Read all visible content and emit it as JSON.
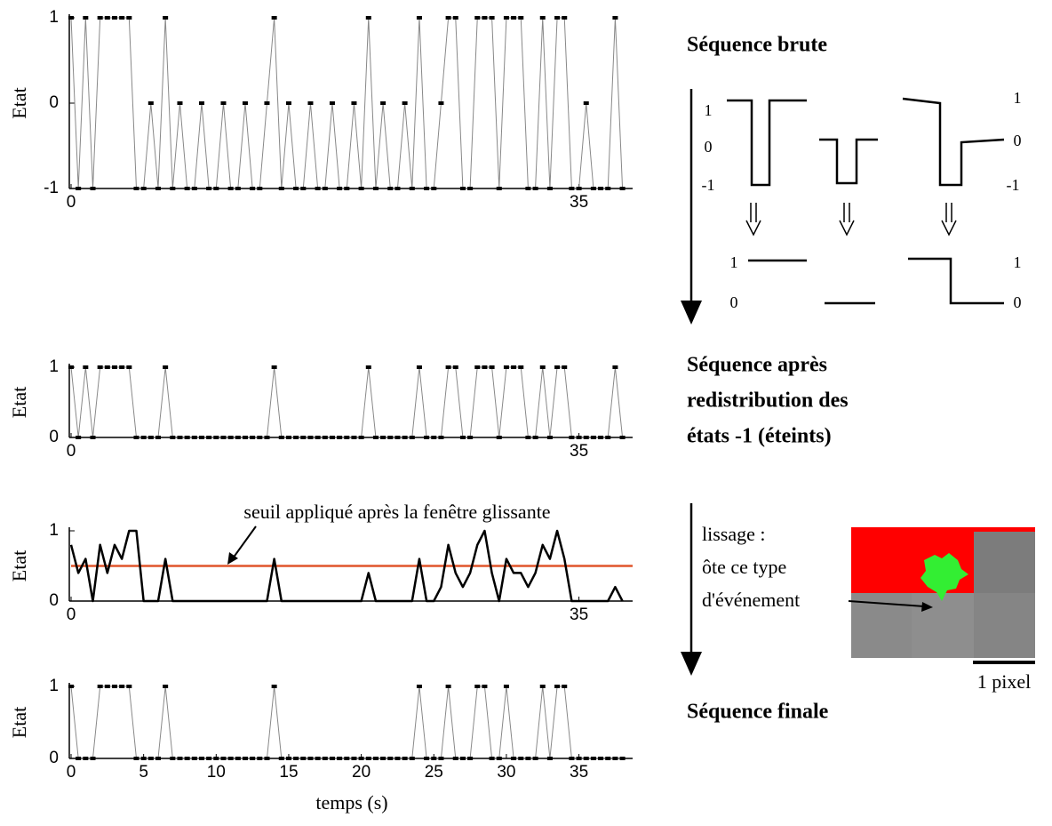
{
  "chart_data": [
    {
      "type": "line",
      "ylabel": "Etat",
      "color": "#888888",
      "markers": true,
      "marker_color": "#000000",
      "xlim": [
        0,
        38.7
      ],
      "xticks": [
        0,
        35
      ],
      "ylim": [
        -1,
        1
      ],
      "yticks": [
        -1,
        0,
        1
      ],
      "x": [
        0,
        0.5,
        1,
        1.5,
        2,
        2.5,
        3,
        3.5,
        4,
        4.5,
        5,
        5.5,
        6,
        6.5,
        7,
        7.5,
        8,
        8.5,
        9,
        9.5,
        10,
        10.5,
        11,
        11.5,
        12,
        12.5,
        13,
        13.5,
        14,
        14.5,
        15,
        15.5,
        16,
        16.5,
        17,
        17.5,
        18,
        18.5,
        19,
        19.5,
        20,
        20.5,
        21,
        21.5,
        22,
        22.5,
        23,
        23.5,
        24,
        24.5,
        25,
        25.5,
        26,
        26.5,
        27,
        27.5,
        28,
        28.5,
        29,
        29.5,
        30,
        30.5,
        31,
        31.5,
        32,
        32.5,
        33,
        33.5,
        34,
        34.5,
        35,
        35.5,
        36,
        36.5,
        37,
        37.5,
        38
      ],
      "values": [
        1,
        -1,
        1,
        -1,
        1,
        1,
        1,
        1,
        1,
        -1,
        -1,
        0,
        -1,
        1,
        -1,
        0,
        -1,
        -1,
        0,
        -1,
        -1,
        0,
        -1,
        -1,
        0,
        -1,
        -1,
        0,
        1,
        -1,
        0,
        -1,
        -1,
        0,
        -1,
        -1,
        0,
        -1,
        -1,
        0,
        -1,
        1,
        -1,
        0,
        -1,
        -1,
        0,
        -1,
        1,
        -1,
        -1,
        0,
        1,
        1,
        -1,
        -1,
        1,
        1,
        1,
        -1,
        1,
        1,
        1,
        -1,
        -1,
        1,
        -1,
        1,
        1,
        -1,
        -1,
        0,
        -1,
        -1,
        -1,
        1,
        -1
      ]
    },
    {
      "type": "line",
      "ylabel": "Etat",
      "color": "#888888",
      "markers": true,
      "marker_color": "#000000",
      "xlim": [
        0,
        38.7
      ],
      "xticks": [
        0,
        35
      ],
      "ylim": [
        0,
        1
      ],
      "yticks": [
        0,
        1
      ],
      "x": [
        0,
        0.5,
        1,
        1.5,
        2,
        2.5,
        3,
        3.5,
        4,
        4.5,
        5,
        5.5,
        6,
        6.5,
        7,
        7.5,
        8,
        8.5,
        9,
        9.5,
        10,
        10.5,
        11,
        11.5,
        12,
        12.5,
        13,
        13.5,
        14,
        14.5,
        15,
        15.5,
        16,
        16.5,
        17,
        17.5,
        18,
        18.5,
        19,
        19.5,
        20,
        20.5,
        21,
        21.5,
        22,
        22.5,
        23,
        23.5,
        24,
        24.5,
        25,
        25.5,
        26,
        26.5,
        27,
        27.5,
        28,
        28.5,
        29,
        29.5,
        30,
        30.5,
        31,
        31.5,
        32,
        32.5,
        33,
        33.5,
        34,
        34.5,
        35,
        35.5,
        36,
        36.5,
        37,
        37.5,
        38
      ],
      "values": [
        1,
        0,
        1,
        0,
        1,
        1,
        1,
        1,
        1,
        0,
        0,
        0,
        0,
        1,
        0,
        0,
        0,
        0,
        0,
        0,
        0,
        0,
        0,
        0,
        0,
        0,
        0,
        0,
        1,
        0,
        0,
        0,
        0,
        0,
        0,
        0,
        0,
        0,
        0,
        0,
        0,
        1,
        0,
        0,
        0,
        0,
        0,
        0,
        1,
        0,
        0,
        0,
        1,
        1,
        0,
        0,
        1,
        1,
        1,
        0,
        1,
        1,
        1,
        0,
        0,
        1,
        0,
        1,
        1,
        0,
        0,
        0,
        0,
        0,
        0,
        1,
        0
      ]
    },
    {
      "type": "line",
      "ylabel": "Etat",
      "color": "#000000",
      "markers": false,
      "threshold": 0.5,
      "threshold_color": "#e0552b",
      "annotation": "seuil appliqué après la fenêtre glissante",
      "xlim": [
        0,
        38.7
      ],
      "xticks": [
        0,
        35
      ],
      "ylim": [
        0,
        1
      ],
      "yticks": [
        0,
        1
      ],
      "x": [
        0,
        0.5,
        1,
        1.5,
        2,
        2.5,
        3,
        3.5,
        4,
        4.5,
        5,
        5.5,
        6,
        6.5,
        7,
        7.5,
        8,
        8.5,
        9,
        9.5,
        10,
        10.5,
        11,
        11.5,
        12,
        12.5,
        13,
        13.5,
        14,
        14.5,
        15,
        15.5,
        16,
        16.5,
        17,
        17.5,
        18,
        18.5,
        19,
        19.5,
        20,
        20.5,
        21,
        21.5,
        22,
        22.5,
        23,
        23.5,
        24,
        24.5,
        25,
        25.5,
        26,
        26.5,
        27,
        27.5,
        28,
        28.5,
        29,
        29.5,
        30,
        30.5,
        31,
        31.5,
        32,
        32.5,
        33,
        33.5,
        34,
        34.5,
        35,
        35.5,
        36,
        36.5,
        37,
        37.5,
        38
      ],
      "values": [
        0.8,
        0.4,
        0.6,
        0,
        0.8,
        0.4,
        0.8,
        0.6,
        1,
        1,
        0,
        0,
        0,
        0.6,
        0,
        0,
        0,
        0,
        0,
        0,
        0,
        0,
        0,
        0,
        0,
        0,
        0,
        0,
        0.6,
        0,
        0,
        0,
        0,
        0,
        0,
        0,
        0,
        0,
        0,
        0,
        0,
        0.4,
        0,
        0,
        0,
        0,
        0,
        0,
        0.6,
        0,
        0,
        0.2,
        0.8,
        0.4,
        0.2,
        0.4,
        0.8,
        1,
        0.4,
        0,
        0.6,
        0.4,
        0.4,
        0.2,
        0.4,
        0.8,
        0.6,
        1,
        0.6,
        0,
        0,
        0,
        0,
        0,
        0,
        0.2,
        0
      ]
    },
    {
      "type": "line",
      "ylabel": "Etat",
      "xlabel": "temps (s)",
      "color": "#888888",
      "markers": true,
      "marker_color": "#000000",
      "xlim": [
        0,
        38.7
      ],
      "xticks": [
        0,
        5,
        10,
        15,
        20,
        25,
        30,
        35
      ],
      "ylim": [
        0,
        1
      ],
      "yticks": [
        0,
        1
      ],
      "x": [
        0,
        0.5,
        1,
        1.5,
        2,
        2.5,
        3,
        3.5,
        4,
        4.5,
        5,
        5.5,
        6,
        6.5,
        7,
        7.5,
        8,
        8.5,
        9,
        9.5,
        10,
        10.5,
        11,
        11.5,
        12,
        12.5,
        13,
        13.5,
        14,
        14.5,
        15,
        15.5,
        16,
        16.5,
        17,
        17.5,
        18,
        18.5,
        19,
        19.5,
        20,
        20.5,
        21,
        21.5,
        22,
        22.5,
        23,
        23.5,
        24,
        24.5,
        25,
        25.5,
        26,
        26.5,
        27,
        27.5,
        28,
        28.5,
        29,
        29.5,
        30,
        30.5,
        31,
        31.5,
        32,
        32.5,
        33,
        33.5,
        34,
        34.5,
        35,
        35.5,
        36,
        36.5,
        37,
        37.5,
        38
      ],
      "values": [
        1,
        0,
        0,
        0,
        1,
        1,
        1,
        1,
        1,
        0,
        0,
        0,
        0,
        1,
        0,
        0,
        0,
        0,
        0,
        0,
        0,
        0,
        0,
        0,
        0,
        0,
        0,
        0,
        1,
        0,
        0,
        0,
        0,
        0,
        0,
        0,
        0,
        0,
        0,
        0,
        0,
        0,
        0,
        0,
        0,
        0,
        0,
        0,
        1,
        0,
        0,
        0,
        1,
        0,
        0,
        0,
        1,
        1,
        0,
        0,
        1,
        0,
        0,
        0,
        0,
        1,
        0,
        1,
        1,
        0,
        0,
        0,
        0,
        0,
        0,
        0,
        0
      ]
    }
  ],
  "right_panel": {
    "title_raw": "Séquence brute",
    "before_left": [
      "1",
      "0",
      "-1"
    ],
    "before_right": [
      "1",
      "0",
      "-1"
    ],
    "after_left": [
      "1",
      "0"
    ],
    "after_right": [
      "1",
      "0"
    ],
    "title_redistributed": [
      "Séquence après",
      "redistribution des",
      "états -1 (éteints)"
    ],
    "smoothing_note": [
      "lissage :",
      "ôte ce type",
      "d'événement"
    ],
    "scale_bar": "1 pixel",
    "title_final": "Séquence finale"
  }
}
